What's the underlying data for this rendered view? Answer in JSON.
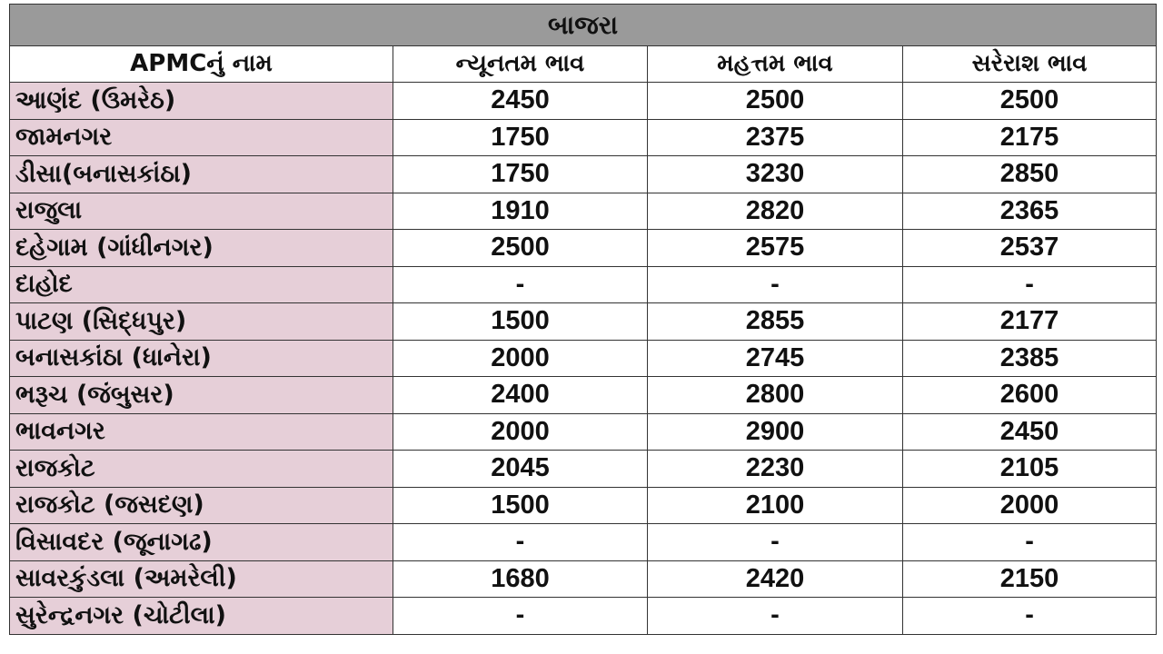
{
  "title": "બાજરા",
  "columns": [
    "APMCનું નામ",
    "ન્યૂનતમ ભાવ",
    "મહત્તમ ભાવ",
    "સરેરાશ ભાવ"
  ],
  "rows": [
    {
      "name": "આણંદ (ઉમરેઠ)",
      "min": "2450",
      "max": "2500",
      "avg": "2500"
    },
    {
      "name": "જામનગર",
      "min": "1750",
      "max": "2375",
      "avg": "2175"
    },
    {
      "name": "ડીસા(બનાસકાંઠા)",
      "min": "1750",
      "max": "3230",
      "avg": "2850"
    },
    {
      "name": "રાજુલા",
      "min": "1910",
      "max": "2820",
      "avg": "2365"
    },
    {
      "name": "દહેગામ (ગાંધીનગર)",
      "min": "2500",
      "max": "2575",
      "avg": "2537"
    },
    {
      "name": "દાહોદ",
      "min": "-",
      "max": "-",
      "avg": "-"
    },
    {
      "name": "પાટણ (સિદ્ધપુર)",
      "min": "1500",
      "max": "2855",
      "avg": "2177"
    },
    {
      "name": "બનાસકાંઠા (ધાનેરા)",
      "min": "2000",
      "max": "2745",
      "avg": "2385"
    },
    {
      "name": "ભરૂચ (જંબુસર)",
      "min": "2400",
      "max": "2800",
      "avg": "2600"
    },
    {
      "name": "ભાવનગર",
      "min": "2000",
      "max": "2900",
      "avg": "2450"
    },
    {
      "name": "રાજકોટ",
      "min": "2045",
      "max": "2230",
      "avg": "2105"
    },
    {
      "name": "રાજકોટ (જસદણ)",
      "min": "1500",
      "max": "2100",
      "avg": "2000"
    },
    {
      "name": "વિસાવદર (જૂનાગઢ)",
      "min": "-",
      "max": "-",
      "avg": "-"
    },
    {
      "name": "સાવરકુંડલા (અમરેલી)",
      "min": "1680",
      "max": "2420",
      "avg": "2150"
    },
    {
      "name": "સુરેન્દ્રનગર (ચોટીલા)",
      "min": "-",
      "max": "-",
      "avg": "-"
    }
  ],
  "colors": {
    "title_bg": "#9a9a9a",
    "name_bg": "#e6cfd8"
  }
}
